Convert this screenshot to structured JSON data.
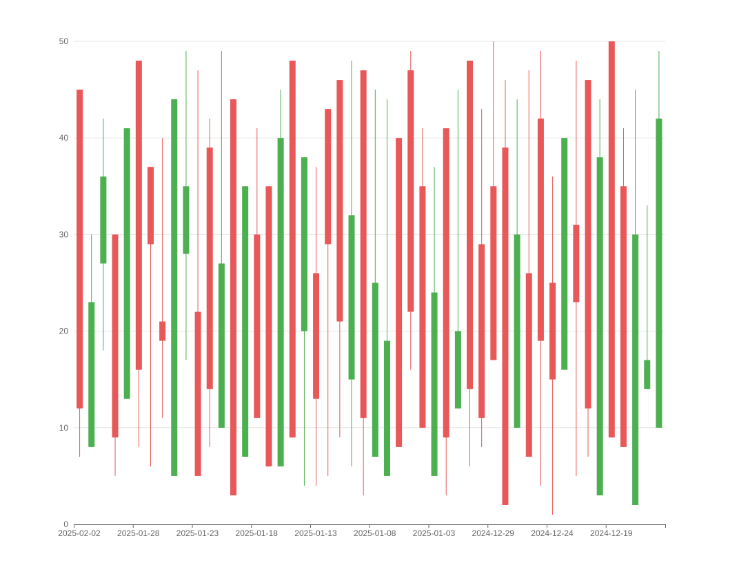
{
  "chart_data": {
    "type": "candlestick",
    "x_tick_labels": [
      "2025-02-02",
      "2025-01-28",
      "2025-01-23",
      "2025-01-18",
      "2025-01-13",
      "2025-01-08",
      "2025-01-03",
      "2024-12-29",
      "2024-12-24",
      "2024-12-19"
    ],
    "y_tick_labels": [
      "0",
      "10",
      "20",
      "30",
      "40",
      "50"
    ],
    "ylim": [
      0,
      50
    ],
    "grid": true,
    "colors": {
      "up": "#4caf50",
      "down": "#e85858",
      "grid": "#e6e6e6",
      "axis": "#666666"
    },
    "candles": [
      {
        "date": "2025-02-02",
        "open": 45,
        "close": 12,
        "low": 7,
        "high": 45
      },
      {
        "date": "2025-02-01",
        "open": 8,
        "close": 23,
        "low": 8,
        "high": 30
      },
      {
        "date": "2025-01-31",
        "open": 27,
        "close": 36,
        "low": 18,
        "high": 42
      },
      {
        "date": "2025-01-30",
        "open": 30,
        "close": 9,
        "low": 5,
        "high": 30
      },
      {
        "date": "2025-01-29",
        "open": 13,
        "close": 41,
        "low": 13,
        "high": 41
      },
      {
        "date": "2025-01-28",
        "open": 48,
        "close": 16,
        "low": 8,
        "high": 48
      },
      {
        "date": "2025-01-27",
        "open": 37,
        "close": 29,
        "low": 6,
        "high": 37
      },
      {
        "date": "2025-01-26",
        "open": 21,
        "close": 19,
        "low": 11,
        "high": 40
      },
      {
        "date": "2025-01-25",
        "open": 5,
        "close": 44,
        "low": 5,
        "high": 44
      },
      {
        "date": "2025-01-24",
        "open": 28,
        "close": 35,
        "low": 17,
        "high": 49
      },
      {
        "date": "2025-01-23",
        "open": 22,
        "close": 5,
        "low": 5,
        "high": 47
      },
      {
        "date": "2025-01-22",
        "open": 39,
        "close": 14,
        "low": 8,
        "high": 42
      },
      {
        "date": "2025-01-21",
        "open": 10,
        "close": 27,
        "low": 10,
        "high": 49
      },
      {
        "date": "2025-01-20",
        "open": 44,
        "close": 3,
        "low": 3,
        "high": 44
      },
      {
        "date": "2025-01-19",
        "open": 7,
        "close": 35,
        "low": 7,
        "high": 35
      },
      {
        "date": "2025-01-18",
        "open": 30,
        "close": 11,
        "low": 11,
        "high": 41
      },
      {
        "date": "2025-01-17",
        "open": 35,
        "close": 6,
        "low": 6,
        "high": 35
      },
      {
        "date": "2025-01-16",
        "open": 6,
        "close": 40,
        "low": 6,
        "high": 45
      },
      {
        "date": "2025-01-15",
        "open": 48,
        "close": 9,
        "low": 9,
        "high": 48
      },
      {
        "date": "2025-01-14",
        "open": 20,
        "close": 38,
        "low": 4,
        "high": 38
      },
      {
        "date": "2025-01-13",
        "open": 26,
        "close": 13,
        "low": 4,
        "high": 37
      },
      {
        "date": "2025-01-12",
        "open": 43,
        "close": 29,
        "low": 5,
        "high": 43
      },
      {
        "date": "2025-01-11",
        "open": 46,
        "close": 21,
        "low": 9,
        "high": 46
      },
      {
        "date": "2025-01-10",
        "open": 15,
        "close": 32,
        "low": 6,
        "high": 48
      },
      {
        "date": "2025-01-09",
        "open": 47,
        "close": 11,
        "low": 3,
        "high": 47
      },
      {
        "date": "2025-01-08",
        "open": 7,
        "close": 25,
        "low": 7,
        "high": 45
      },
      {
        "date": "2025-01-07",
        "open": 5,
        "close": 19,
        "low": 5,
        "high": 44
      },
      {
        "date": "2025-01-06",
        "open": 40,
        "close": 8,
        "low": 8,
        "high": 40
      },
      {
        "date": "2025-01-05",
        "open": 47,
        "close": 22,
        "low": 16,
        "high": 49
      },
      {
        "date": "2025-01-04",
        "open": 35,
        "close": 10,
        "low": 10,
        "high": 41
      },
      {
        "date": "2025-01-03",
        "open": 5,
        "close": 24,
        "low": 5,
        "high": 37
      },
      {
        "date": "2025-01-02",
        "open": 41,
        "close": 9,
        "low": 3,
        "high": 41
      },
      {
        "date": "2025-01-01",
        "open": 12,
        "close": 20,
        "low": 12,
        "high": 45
      },
      {
        "date": "2024-12-31",
        "open": 48,
        "close": 14,
        "low": 6,
        "high": 48
      },
      {
        "date": "2024-12-30",
        "open": 29,
        "close": 11,
        "low": 8,
        "high": 43
      },
      {
        "date": "2024-12-29",
        "open": 35,
        "close": 17,
        "low": 17,
        "high": 50
      },
      {
        "date": "2024-12-28",
        "open": 39,
        "close": 2,
        "low": 2,
        "high": 46
      },
      {
        "date": "2024-12-27",
        "open": 10,
        "close": 30,
        "low": 10,
        "high": 44
      },
      {
        "date": "2024-12-26",
        "open": 26,
        "close": 7,
        "low": 7,
        "high": 47
      },
      {
        "date": "2024-12-25",
        "open": 42,
        "close": 19,
        "low": 4,
        "high": 49
      },
      {
        "date": "2024-12-24",
        "open": 25,
        "close": 15,
        "low": 1,
        "high": 36
      },
      {
        "date": "2024-12-23",
        "open": 16,
        "close": 40,
        "low": 16,
        "high": 40
      },
      {
        "date": "2024-12-22",
        "open": 31,
        "close": 23,
        "low": 5,
        "high": 48
      },
      {
        "date": "2024-12-21",
        "open": 46,
        "close": 12,
        "low": 7,
        "high": 46
      },
      {
        "date": "2024-12-20",
        "open": 3,
        "close": 38,
        "low": 3,
        "high": 44
      },
      {
        "date": "2024-12-19",
        "open": 50,
        "close": 9,
        "low": 9,
        "high": 50
      },
      {
        "date": "2024-12-18",
        "open": 35,
        "close": 8,
        "low": 8,
        "high": 41
      },
      {
        "date": "2024-12-17",
        "open": 2,
        "close": 30,
        "low": 2,
        "high": 45
      },
      {
        "date": "2024-12-16",
        "open": 14,
        "close": 17,
        "low": 14,
        "high": 33
      },
      {
        "date": "2024-12-15",
        "open": 10,
        "close": 42,
        "low": 10,
        "high": 49
      }
    ]
  }
}
